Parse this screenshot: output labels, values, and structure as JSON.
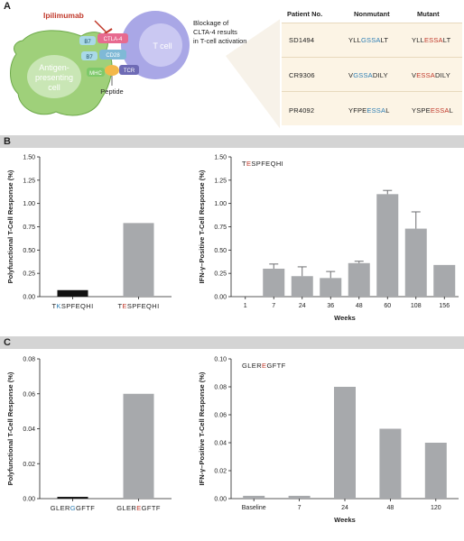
{
  "panels": {
    "a": "A",
    "b": "B",
    "c": "C"
  },
  "diagram": {
    "drug": "Ipilimumab",
    "cell_left_line1": "Antigen-",
    "cell_left_line2": "presenting",
    "cell_left_line3": "cell",
    "cell_right": "T cell",
    "b7_top": "B7",
    "ctla4": "CTLA-4",
    "b7_mid": "B7",
    "cd28": "CD28",
    "mhc": "MHC",
    "tcr": "TCR",
    "peptide": "Peptide",
    "caption_line1": "Blockage of",
    "caption_line2": "CLTA-4 results",
    "caption_line3": "in T-cell activation"
  },
  "table": {
    "headers": [
      "Patient No.",
      "Nonmutant",
      "Mutant"
    ],
    "rows": [
      {
        "patient": "SD1494",
        "non": [
          [
            "YLL",
            ""
          ],
          [
            "GSSA",
            "blue"
          ],
          [
            "LT",
            ""
          ]
        ],
        "mut": [
          [
            "YLL",
            ""
          ],
          [
            "ESSA",
            "red"
          ],
          [
            "LT",
            ""
          ]
        ]
      },
      {
        "patient": "CR9306",
        "non": [
          [
            "V",
            ""
          ],
          [
            "GSSA",
            "blue"
          ],
          [
            "DILY",
            ""
          ]
        ],
        "mut": [
          [
            "V",
            ""
          ],
          [
            "ESSA",
            "red"
          ],
          [
            "DILY",
            ""
          ]
        ]
      },
      {
        "patient": "PR4092",
        "non": [
          [
            "YFPE",
            ""
          ],
          [
            "ESSA",
            "blue"
          ],
          [
            "L",
            ""
          ]
        ],
        "mut": [
          [
            "YSPE",
            ""
          ],
          [
            "ESSA",
            "red"
          ],
          [
            "L",
            ""
          ]
        ]
      }
    ]
  },
  "chart_data": [
    {
      "id": "b-left",
      "type": "bar",
      "ylabel": "Polyfunctional T-Cell Response (%)",
      "ylim": [
        0,
        1.5
      ],
      "yticks": [
        "0.00",
        "0.25",
        "0.50",
        "0.75",
        "1.00",
        "1.25",
        "1.50"
      ],
      "categories": [
        [
          [
            "T",
            ""
          ],
          [
            "K",
            "blue"
          ],
          [
            "SPFEQHI",
            ""
          ]
        ],
        [
          [
            "T",
            ""
          ],
          [
            "E",
            "red"
          ],
          [
            "SPFEQHI",
            ""
          ]
        ]
      ],
      "values": [
        0.07,
        0.79
      ],
      "colors": [
        "#111111",
        "#a7a9ac"
      ]
    },
    {
      "id": "b-right",
      "type": "bar",
      "ylabel": "IFN-γ–Positive T-Cell Response (%)",
      "xlabel": "Weeks",
      "annotation": [
        [
          "T",
          ""
        ],
        [
          "E",
          "red"
        ],
        [
          "SPFEQHI",
          ""
        ]
      ],
      "ylim": [
        0,
        1.5
      ],
      "yticks": [
        "0.00",
        "0.25",
        "0.50",
        "0.75",
        "1.00",
        "1.25",
        "1.50"
      ],
      "categories": [
        "1",
        "7",
        "24",
        "36",
        "48",
        "60",
        "108",
        "156"
      ],
      "values": [
        0,
        0.3,
        0.22,
        0.2,
        0.36,
        1.1,
        0.73,
        0.34
      ],
      "errors": [
        0,
        0.05,
        0.1,
        0.07,
        0.02,
        0.04,
        0.18,
        0
      ],
      "colors": [
        "#a7a9ac"
      ]
    },
    {
      "id": "c-left",
      "type": "bar",
      "ylabel": "Polyfunctional T-Cell Response (%)",
      "ylim": [
        0,
        0.08
      ],
      "yticks": [
        "0.00",
        "0.02",
        "0.04",
        "0.06",
        "0.08"
      ],
      "categories": [
        [
          [
            "GLER",
            ""
          ],
          [
            "G",
            "blue"
          ],
          [
            "GFTF",
            ""
          ]
        ],
        [
          [
            "GLER",
            ""
          ],
          [
            "E",
            "red"
          ],
          [
            "GFTF",
            ""
          ]
        ]
      ],
      "values": [
        0.001,
        0.06
      ],
      "colors": [
        "#111111",
        "#a7a9ac"
      ]
    },
    {
      "id": "c-right",
      "type": "bar",
      "ylabel": "IFN-γ–Positive T-Cell Response (%)",
      "xlabel": "Weeks",
      "annotation": [
        [
          "GLER",
          ""
        ],
        [
          "E",
          "red"
        ],
        [
          "GFTF",
          ""
        ]
      ],
      "ylim": [
        0,
        0.1
      ],
      "yticks": [
        "0.00",
        "0.02",
        "0.04",
        "0.06",
        "0.08",
        "0.10"
      ],
      "categories": [
        "Baseline",
        "7",
        "24",
        "48",
        "120"
      ],
      "values": [
        0.002,
        0.002,
        0.08,
        0.05,
        0.04
      ],
      "colors": [
        "#a7a9ac"
      ]
    }
  ]
}
